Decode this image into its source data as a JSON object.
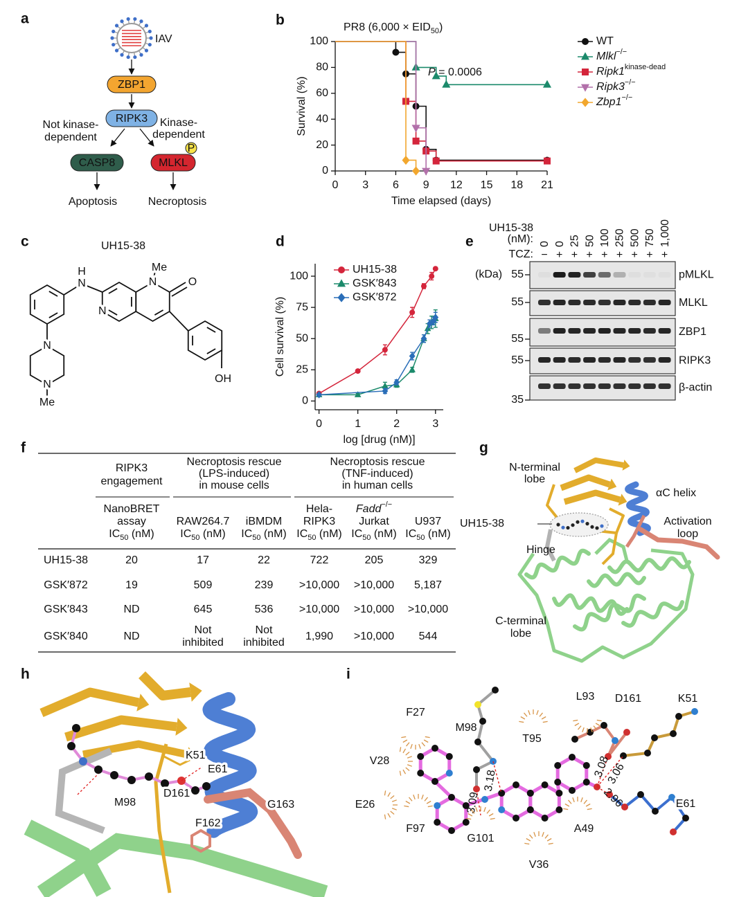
{
  "panel_labels": [
    "a",
    "b",
    "c",
    "d",
    "e",
    "f",
    "g",
    "h",
    "i"
  ],
  "a": {
    "virus": "IAV",
    "zbp1": "ZBP1",
    "ripk3": "RIPK3",
    "casp8": "CASP8",
    "mlkl": "MLKL",
    "phospho": "P",
    "not_kinase": [
      "Not kinase-",
      "dependent"
    ],
    "kinase": [
      "Kinase-",
      "dependent"
    ],
    "apoptosis": "Apoptosis",
    "necroptosis": "Necroptosis"
  },
  "chart_data": [
    {
      "type": "line",
      "step": true,
      "title": [
        {
          "t": "PR8 (6,000 × EID"
        },
        {
          "sub": "50"
        },
        {
          "t": ")"
        }
      ],
      "annotation": [
        {
          "i": "P"
        },
        {
          "t": " = 0.0006"
        }
      ],
      "xlabel": "Time elapsed (days)",
      "ylabel": "Survival (%)",
      "xlim": [
        0,
        21
      ],
      "xticks": [
        0,
        3,
        6,
        9,
        12,
        15,
        18,
        21
      ],
      "ylim": [
        0,
        100
      ],
      "yticks": [
        0,
        20,
        40,
        60,
        80,
        100
      ],
      "legend": "right",
      "series": [
        {
          "name": [
            {
              "t": "WT"
            }
          ],
          "color": "#111111",
          "marker": "circle",
          "x": [
            0,
            6,
            7,
            8,
            9,
            10,
            21
          ],
          "values": [
            100,
            91.7,
            75,
            50,
            16.7,
            8.3,
            8.3
          ]
        },
        {
          "name": [
            {
              "i": "Mlkl"
            },
            {
              "sup": "−/−"
            }
          ],
          "color": "#1b8a6b",
          "marker": "triangle",
          "x": [
            0,
            8,
            10,
            11,
            21
          ],
          "values": [
            100,
            80,
            73.3,
            66.7,
            66.7
          ]
        },
        {
          "name": [
            {
              "i": "Ripk1"
            },
            {
              "sup": "kinase-dead"
            }
          ],
          "color": "#d4253b",
          "marker": "square",
          "x": [
            0,
            7,
            8,
            9,
            10,
            21
          ],
          "values": [
            100,
            53.8,
            23.1,
            15.4,
            7.7,
            7.7
          ]
        },
        {
          "name": [
            {
              "i": "Ripk3"
            },
            {
              "sup": "−/−"
            }
          ],
          "color": "#b270aa",
          "marker": "triangle-down",
          "x": [
            0,
            8,
            9
          ],
          "values": [
            100,
            33.3,
            0
          ]
        },
        {
          "name": [
            {
              "i": "Zbp1"
            },
            {
              "sup": "−/−"
            }
          ],
          "color": "#f2a72e",
          "marker": "diamond",
          "x": [
            0,
            7,
            8
          ],
          "values": [
            100,
            8.3,
            0
          ]
        }
      ]
    },
    {
      "type": "scatter",
      "xlabel": "log [drug (nM)]",
      "ylabel": "Cell survival (%)",
      "xlim": [
        -0.1,
        3.2
      ],
      "xticks": [
        0,
        1,
        2,
        3
      ],
      "ylim": [
        -7,
        110
      ],
      "yticks": [
        0,
        25,
        50,
        75,
        100
      ],
      "legend": "top-left",
      "series": [
        {
          "name": [
            {
              "t": "UH15-38"
            }
          ],
          "color": "#d4253b",
          "marker": "circle",
          "x": [
            0,
            1,
            1.7,
            2.4,
            2.7,
            2.9,
            3
          ],
          "values": [
            6,
            24,
            41,
            71,
            92,
            100,
            106
          ],
          "errors": [
            1,
            1,
            4,
            4,
            2,
            3,
            1
          ]
        },
        {
          "name": [
            {
              "t": "GSK′843"
            }
          ],
          "color": "#1b8a6b",
          "marker": "triangle",
          "x": [
            0,
            1,
            1.7,
            2,
            2.4,
            2.7,
            2.8,
            2.9,
            3
          ],
          "values": [
            5,
            5,
            12,
            13,
            25,
            50,
            58,
            63,
            66
          ],
          "errors": [
            1,
            1,
            3,
            2,
            2,
            3,
            4,
            5,
            7
          ]
        },
        {
          "name": [
            {
              "t": "GSK′872"
            }
          ],
          "color": "#2a6eb8",
          "marker": "diamond",
          "x": [
            0,
            1.7,
            2,
            2.4,
            2.7,
            2.85,
            2.95,
            3
          ],
          "values": [
            5,
            8,
            15,
            36,
            50,
            62,
            64,
            67
          ],
          "errors": [
            1,
            2,
            2,
            3,
            3,
            3,
            3,
            4
          ]
        }
      ]
    }
  ],
  "c": {
    "name": "UH15-38",
    "atoms": [
      "H",
      "N",
      "Me",
      "N",
      "O",
      "N",
      "N",
      "N",
      "Me",
      "OH"
    ]
  },
  "e": {
    "drug": "UH15-38",
    "unit": "(nM):",
    "concentrations": [
      0,
      0,
      25,
      50,
      100,
      250,
      500,
      750,
      "1,000"
    ],
    "tcz_label": "TCZ:",
    "tcz": [
      "−",
      "+",
      "+",
      "+",
      "+",
      "+",
      "+",
      "+",
      "+"
    ],
    "kda": "(kDa)",
    "rows": [
      {
        "protein": "pMLKL",
        "mw": 55
      },
      {
        "protein": "MLKL",
        "mw": 55
      },
      {
        "protein": "ZBP1",
        "mw": 55
      },
      {
        "protein": "RIPK3",
        "mw": 55
      },
      {
        "protein": "β-actin",
        "mw": 35
      }
    ]
  },
  "f": {
    "groups": [
      [
        "RIPK3",
        "engagement"
      ],
      [
        "Necroptosis rescue",
        "(LPS-induced)",
        "in mouse cells"
      ],
      [
        "Necroptosis rescue",
        "(TNF-induced)",
        "in human cells"
      ]
    ],
    "columns": [
      [
        "NanoBRET",
        "assay",
        [
          {
            "t": "IC"
          },
          {
            "sub": "50"
          },
          {
            "t": " (nM)"
          }
        ]
      ],
      [
        "RAW264.7",
        [
          {
            "t": "IC"
          },
          {
            "sub": "50"
          },
          {
            "t": " (nM)"
          }
        ]
      ],
      [
        "iBMDM",
        [
          {
            "t": "IC"
          },
          {
            "sub": "50"
          },
          {
            "t": " (nM)"
          }
        ]
      ],
      [
        "Hela-",
        "RIPK3",
        [
          {
            "t": "IC"
          },
          {
            "sub": "50"
          },
          {
            "t": " (nM)"
          }
        ]
      ],
      [
        [
          {
            "i": "Fadd"
          },
          {
            "sup": "−/−"
          }
        ],
        "Jurkat",
        [
          {
            "t": "IC"
          },
          {
            "sub": "50"
          },
          {
            "t": " (nM)"
          }
        ]
      ],
      [
        "U937",
        [
          {
            "t": "IC"
          },
          {
            "sub": "50"
          },
          {
            "t": " (nM)"
          }
        ]
      ]
    ],
    "rows": [
      {
        "name": "UH15-38",
        "color": "#c8323c",
        "cells": [
          20,
          17,
          22,
          722,
          205,
          329
        ]
      },
      {
        "name": "GSK′872",
        "cells": [
          19,
          509,
          239,
          ">10,000",
          ">10,000",
          "5,187"
        ]
      },
      {
        "name": "GSK′843",
        "cells": [
          "ND",
          645,
          536,
          ">10,000",
          ">10,000",
          ">10,000"
        ]
      },
      {
        "name": "GSK′840",
        "cells": [
          "ND",
          [
            "Not",
            "inhibited"
          ],
          [
            "Not",
            "inhibited"
          ],
          "1,990",
          ">10,000",
          544
        ]
      }
    ]
  },
  "g": {
    "n_lobe": [
      "N-terminal",
      "lobe"
    ],
    "ac_helix": "αC helix",
    "ligand": "UH15-38",
    "activation_loop": [
      "Activation",
      "loop"
    ],
    "hinge": "Hinge",
    "c_lobe": [
      "C-terminal",
      "lobe"
    ]
  },
  "h": {
    "labels": [
      {
        "text": "K51",
        "color": "#b8862b"
      },
      {
        "text": "E61",
        "color": "#3b6fcf"
      },
      {
        "text": "D161",
        "color": "#d7303a"
      },
      {
        "text": "G163",
        "color": "#d9625a"
      },
      {
        "text": "M98",
        "color": "#8a8a8a"
      },
      {
        "text": "F162",
        "color": "#d9625a"
      }
    ]
  },
  "i": {
    "residues": [
      {
        "name": "F27",
        "color": "#222222"
      },
      {
        "name": "M98",
        "color": "#8a8a8a"
      },
      {
        "name": "L93",
        "color": "#222222"
      },
      {
        "name": "D161",
        "color": "#d7303a"
      },
      {
        "name": "K51",
        "color": "#b8862b"
      },
      {
        "name": "T95",
        "color": "#222222"
      },
      {
        "name": "V28",
        "color": "#222222"
      },
      {
        "name": "E26",
        "color": "#222222"
      },
      {
        "name": "F97",
        "color": "#222222"
      },
      {
        "name": "G101",
        "color": "#222222"
      },
      {
        "name": "V36",
        "color": "#222222"
      },
      {
        "name": "A49",
        "color": "#222222"
      },
      {
        "name": "E61",
        "color": "#3b6fcf"
      }
    ],
    "distances": [
      3.09,
      3.18,
      3.08,
      3.06,
      2.96
    ]
  }
}
